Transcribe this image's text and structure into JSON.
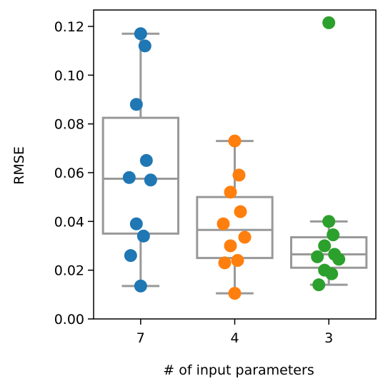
{
  "chart_data": {
    "type": "box",
    "xlabel": "# of input parameters",
    "ylabel": "RMSE",
    "ylim": [
      0,
      0.126
    ],
    "yticks": [
      0.0,
      0.02,
      0.04,
      0.06,
      0.08,
      0.1,
      0.12
    ],
    "ytick_labels": [
      "0.00",
      "0.02",
      "0.04",
      "0.06",
      "0.08",
      "0.10",
      "0.12"
    ],
    "categories": [
      "7",
      "4",
      "3"
    ],
    "grid": false,
    "series": [
      {
        "category": "7",
        "color": "#1f77b4",
        "points": [
          0.117,
          0.112,
          0.088,
          0.065,
          0.058,
          0.057,
          0.039,
          0.034,
          0.026,
          0.0135
        ],
        "box": {
          "whislo": 0.0135,
          "q1": 0.035,
          "median": 0.0575,
          "q3": 0.0825,
          "whishi": 0.117
        },
        "fliers": []
      },
      {
        "category": "4",
        "color": "#ff7f0e",
        "points": [
          0.073,
          0.059,
          0.052,
          0.044,
          0.039,
          0.0335,
          0.03,
          0.024,
          0.023,
          0.0105
        ],
        "box": {
          "whislo": 0.0105,
          "q1": 0.025,
          "median": 0.0365,
          "q3": 0.05,
          "whishi": 0.073
        },
        "fliers": []
      },
      {
        "category": "3",
        "color": "#2ca02c",
        "points": [
          0.04,
          0.0345,
          0.03,
          0.0265,
          0.0255,
          0.0245,
          0.02,
          0.0185,
          0.014
        ],
        "box": {
          "whislo": 0.014,
          "q1": 0.021,
          "median": 0.0265,
          "q3": 0.0335,
          "whishi": 0.04
        },
        "fliers": [
          0.1215
        ]
      }
    ]
  }
}
